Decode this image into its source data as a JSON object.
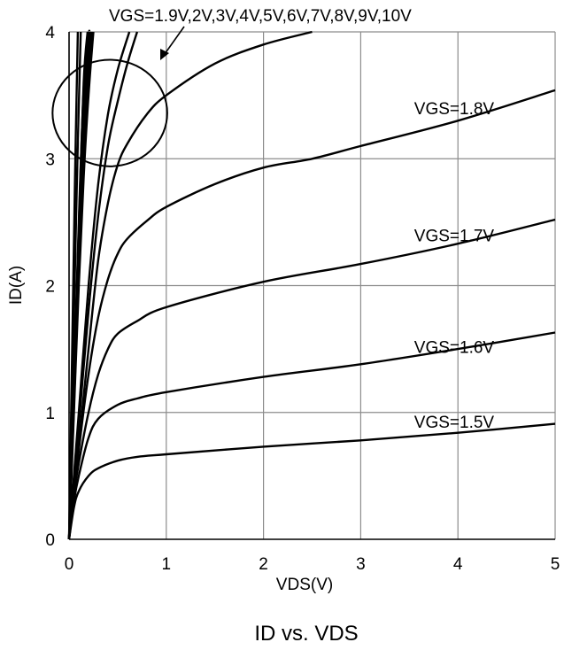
{
  "chart_data": {
    "type": "line",
    "title": "ID vs. VDS",
    "xlabel": "VDS(V)",
    "ylabel": "ID(A)",
    "xlim": [
      0,
      5
    ],
    "ylim": [
      0,
      4
    ],
    "xticks": [
      "0",
      "1",
      "2",
      "3",
      "4",
      "5"
    ],
    "yticks": [
      "0",
      "1",
      "2",
      "3",
      "4"
    ],
    "grid": true,
    "legend": "none",
    "series": [
      {
        "name": "VGS=1.5V",
        "x": [
          0,
          0.05,
          0.1,
          0.2,
          0.3,
          0.5,
          0.7,
          1,
          2,
          3,
          4,
          5
        ],
        "y": [
          0,
          0.25,
          0.38,
          0.5,
          0.56,
          0.62,
          0.65,
          0.67,
          0.73,
          0.78,
          0.84,
          0.91
        ]
      },
      {
        "name": "VGS=1.6V",
        "x": [
          0,
          0.05,
          0.1,
          0.2,
          0.3,
          0.5,
          0.7,
          1,
          2,
          3,
          4,
          5
        ],
        "y": [
          0,
          0.3,
          0.5,
          0.8,
          0.95,
          1.06,
          1.11,
          1.16,
          1.28,
          1.38,
          1.5,
          1.63
        ]
      },
      {
        "name": "VGS=1.7V",
        "x": [
          0,
          0.05,
          0.1,
          0.2,
          0.3,
          0.4,
          0.5,
          0.7,
          1,
          2,
          3,
          4,
          5
        ],
        "y": [
          0,
          0.35,
          0.6,
          1.0,
          1.3,
          1.5,
          1.62,
          1.72,
          1.83,
          2.03,
          2.17,
          2.33,
          2.52
        ]
      },
      {
        "name": "VGS=1.8V",
        "x": [
          0,
          0.1,
          0.2,
          0.3,
          0.4,
          0.5,
          0.6,
          0.8,
          1,
          1.5,
          2,
          2.5,
          3,
          4,
          5
        ],
        "y": [
          0,
          0.7,
          1.3,
          1.75,
          2.05,
          2.25,
          2.37,
          2.51,
          2.62,
          2.8,
          2.93,
          3.0,
          3.1,
          3.3,
          3.54
        ]
      },
      {
        "name": "VGS=1.9V",
        "x": [
          0,
          0.1,
          0.2,
          0.3,
          0.4,
          0.5,
          0.6,
          0.8,
          1,
          1.5,
          2,
          2.5
        ],
        "y": [
          0,
          0.75,
          1.5,
          2.2,
          2.65,
          2.95,
          3.12,
          3.35,
          3.5,
          3.75,
          3.9,
          4.0
        ]
      },
      {
        "name": "VGS=2V",
        "x": [
          0,
          0.1,
          0.2,
          0.3,
          0.4,
          0.5,
          0.6,
          0.7
        ],
        "y": [
          0,
          0.9,
          1.8,
          2.55,
          3.1,
          3.45,
          3.75,
          4.0
        ]
      },
      {
        "name": "VGS=3V",
        "x": [
          0,
          0.1,
          0.2,
          0.3,
          0.4,
          0.5,
          0.62
        ],
        "y": [
          0,
          1.0,
          2.0,
          2.8,
          3.35,
          3.7,
          4.0
        ]
      },
      {
        "name": "VGS=4V",
        "x": [
          0,
          0.05,
          0.1,
          0.15,
          0.2,
          0.25
        ],
        "y": [
          0,
          1.0,
          2.0,
          2.85,
          3.5,
          4.0
        ]
      },
      {
        "name": "VGS=5V",
        "x": [
          0,
          0.05,
          0.1,
          0.15,
          0.2,
          0.24
        ],
        "y": [
          0,
          1.05,
          2.1,
          3.0,
          3.65,
          4.0
        ]
      },
      {
        "name": "VGS=6V",
        "x": [
          0,
          0.05,
          0.1,
          0.15,
          0.2,
          0.23
        ],
        "y": [
          0,
          1.1,
          2.2,
          3.15,
          3.8,
          4.0
        ]
      },
      {
        "name": "VGS=7V",
        "x": [
          0,
          0.05,
          0.1,
          0.15,
          0.2,
          0.22
        ],
        "y": [
          0,
          1.15,
          2.3,
          3.3,
          3.9,
          4.0
        ]
      },
      {
        "name": "VGS=8V",
        "x": [
          0,
          0.05,
          0.1,
          0.15,
          0.2,
          0.21
        ],
        "y": [
          0,
          1.2,
          2.4,
          3.4,
          3.95,
          4.0
        ]
      },
      {
        "name": "VGS=9V",
        "x": [
          0,
          0.05,
          0.1,
          0.15,
          0.2
        ],
        "y": [
          0,
          1.22,
          2.45,
          3.55,
          4.0
        ]
      },
      {
        "name": "VGS=10V",
        "x": [
          0,
          0.05,
          0.1,
          0.15,
          0.19
        ],
        "y": [
          0,
          1.25,
          2.5,
          3.6,
          4.0
        ]
      },
      {
        "name": "",
        "x": [
          0,
          0.04,
          0.08,
          0.12
        ],
        "y": [
          0,
          1.4,
          2.8,
          4.0
        ]
      },
      {
        "name": "",
        "x": [
          0,
          0.03,
          0.06,
          0.09
        ],
        "y": [
          0,
          1.4,
          2.8,
          4.0
        ]
      }
    ],
    "annotations": {
      "group_label": "VGS=1.9V,2V,3V,4V,5V,6V,7V,8V,9V,10V",
      "labels": [
        {
          "text": "VGS=1.8V",
          "x": 3.55,
          "y": 3.35
        },
        {
          "text": "VGS=1.7V",
          "x": 3.55,
          "y": 2.35
        },
        {
          "text": "VGS=1.6V",
          "x": 3.55,
          "y": 1.47
        },
        {
          "text": "VGS=1.5V",
          "x": 3.55,
          "y": 0.88
        }
      ],
      "circle": {
        "cx": 0.42,
        "cy": 3.36,
        "rx": 0.59,
        "ry": 0.42
      }
    }
  }
}
